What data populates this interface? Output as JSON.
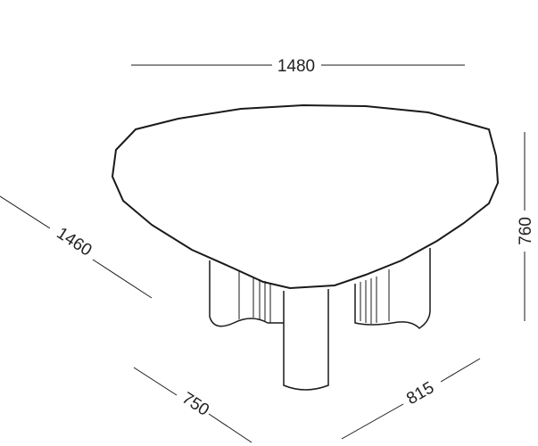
{
  "dimensions": {
    "width": "1480",
    "depth": "1460",
    "height": "760",
    "leg_a": "750",
    "leg_b": "815"
  }
}
